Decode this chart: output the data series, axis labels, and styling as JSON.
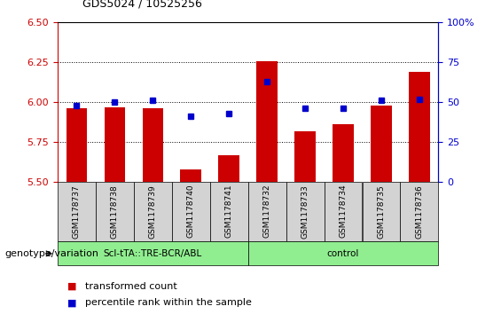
{
  "title": "GDS5024 / 10525256",
  "samples": [
    "GSM1178737",
    "GSM1178738",
    "GSM1178739",
    "GSM1178740",
    "GSM1178741",
    "GSM1178732",
    "GSM1178733",
    "GSM1178734",
    "GSM1178735",
    "GSM1178736"
  ],
  "transformed_count": [
    5.96,
    5.97,
    5.96,
    5.58,
    5.67,
    6.26,
    5.82,
    5.86,
    5.98,
    6.19
  ],
  "percentile_rank": [
    48,
    50,
    51,
    41,
    43,
    63,
    46,
    46,
    51,
    52
  ],
  "ylim_left": [
    5.5,
    6.5
  ],
  "ylim_right": [
    0,
    100
  ],
  "yticks_left": [
    5.5,
    5.75,
    6.0,
    6.25,
    6.5
  ],
  "yticks_right": [
    0,
    25,
    50,
    75,
    100
  ],
  "bar_color": "#cc0000",
  "dot_color": "#0000cc",
  "bar_bottom": 5.5,
  "group1_label": "Scl-tTA::TRE-BCR/ABL",
  "group2_label": "control",
  "group1_indices": [
    0,
    1,
    2,
    3,
    4
  ],
  "group2_indices": [
    5,
    6,
    7,
    8,
    9
  ],
  "group_bg_color": "#90ee90",
  "tick_bg_color": "#d3d3d3",
  "legend_bar_label": "transformed count",
  "legend_dot_label": "percentile rank within the sample",
  "genotype_label": "genotype/variation"
}
